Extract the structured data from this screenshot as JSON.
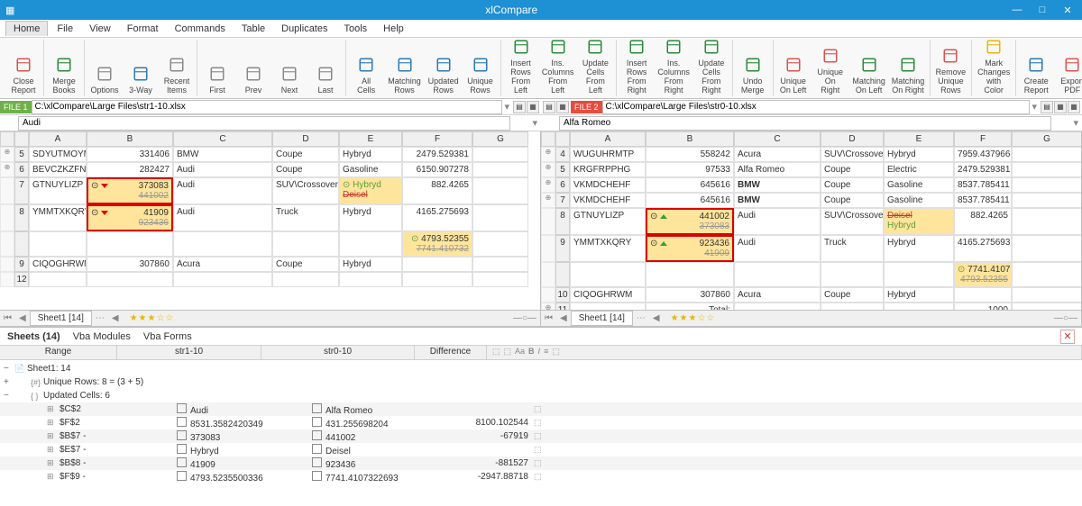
{
  "app": {
    "title": "xlCompare"
  },
  "menu": [
    "Home",
    "File",
    "View",
    "Format",
    "Commands",
    "Table",
    "Duplicates",
    "Tools",
    "Help"
  ],
  "menuActive": 0,
  "ribbon": [
    {
      "label": "Close\nReport",
      "color": "#d9534f"
    },
    {
      "label": "Merge\nBooks",
      "color": "#2a8a3a"
    },
    {
      "label": "Options",
      "color": "#888"
    },
    {
      "label": "3-Way",
      "color": "#2a7ab0"
    },
    {
      "label": "Recent\nItems",
      "color": "#888"
    },
    {
      "label": "First",
      "color": "#888"
    },
    {
      "label": "Prev",
      "color": "#888"
    },
    {
      "label": "Next",
      "color": "#888"
    },
    {
      "label": "Last",
      "color": "#888"
    },
    {
      "label": "All Cells",
      "color": "#2a7ab0"
    },
    {
      "label": "Matching\nRows",
      "color": "#2a7ab0"
    },
    {
      "label": "Updated\nRows",
      "color": "#2a7ab0"
    },
    {
      "label": "Unique\nRows",
      "color": "#2a7ab0"
    },
    {
      "label": "Insert Rows\nFrom Left",
      "color": "#2a8a3a"
    },
    {
      "label": "Ins. Columns\nFrom Left",
      "color": "#2a8a3a"
    },
    {
      "label": "Update Cells\nFrom Left",
      "color": "#2a8a3a"
    },
    {
      "label": "Insert Rows\nFrom Right",
      "color": "#2a8a3a"
    },
    {
      "label": "Ins. Columns\nFrom Right",
      "color": "#2a8a3a"
    },
    {
      "label": "Update Cells\nFrom Right",
      "color": "#2a8a3a"
    },
    {
      "label": "Undo\nMerge",
      "color": "#2a8a3a"
    },
    {
      "label": "Unique\nOn Left",
      "color": "#d9534f"
    },
    {
      "label": "Unique\nOn Right",
      "color": "#d9534f"
    },
    {
      "label": "Matching\nOn Left",
      "color": "#2a8a3a"
    },
    {
      "label": "Matching\nOn Right",
      "color": "#2a8a3a"
    },
    {
      "label": "Remove\nUnique Rows",
      "color": "#d9534f"
    },
    {
      "label": "Mark Changes\nwith Color",
      "color": "#e6b800"
    },
    {
      "label": "Create\nReport",
      "color": "#2a7ab0"
    },
    {
      "label": "Export\nPDF",
      "color": "#d9534f"
    }
  ],
  "files": {
    "left": {
      "tag": "FILE 1",
      "path": "C:\\xlCompare\\Large Files\\str1-10.xlsx",
      "cell": "Audi"
    },
    "right": {
      "tag": "FILE 2",
      "path": "C:\\xlCompare\\Large Files\\str0-10.xlsx",
      "cell": "Alfa Romeo"
    }
  },
  "cols": [
    "A",
    "B",
    "C",
    "D",
    "E",
    "F",
    "G"
  ],
  "leftRows": [
    {
      "n": "5",
      "cls": "green-row",
      "a": "SDYUTMOYM",
      "b": "331406",
      "c": "BMW",
      "d": "Coupe",
      "e": "Hybryd",
      "f": "2479.529381"
    },
    {
      "n": "6",
      "cls": "green-row",
      "a": "BEVCZKZFN",
      "b": "282427",
      "c": "Audi",
      "d": "Coupe",
      "e": "Gasoline",
      "f": "6150.907278"
    },
    {
      "n": "7",
      "a": "GTNUYLIZP",
      "b": "373083",
      "b2": "441002",
      "c": "Audi",
      "d": "SUV\\Crossover",
      "e": "Hybryd",
      "e2": "Deisel",
      "f": "882.4265",
      "box": true,
      "ecell": true
    },
    {
      "n": "8",
      "a": "YMMTXKQRY",
      "b": "41909",
      "b2": "923436",
      "c": "Audi",
      "d": "Truck",
      "e": "Hybryd",
      "f": "4165.275693",
      "box": true
    },
    {
      "n": "",
      "f": "4793.52355",
      "f2": "7741.410732",
      "fonly": true
    },
    {
      "n": "9",
      "a": "CIQOGHRWM",
      "b": "307860",
      "c": "Acura",
      "d": "Coupe",
      "e": "Hybryd",
      "f": ""
    },
    {
      "n": "12"
    }
  ],
  "rightRows": [
    {
      "n": "4",
      "cls": "pink-row",
      "a": "WUGUHRMTP",
      "b": "558242",
      "c": "Acura",
      "d": "SUV\\Crossover",
      "e": "Hybryd",
      "f": "7959.437966"
    },
    {
      "n": "5",
      "cls": "pink-row",
      "a": "KRGFRPPHG",
      "b": "97533",
      "c": "Alfa Romeo",
      "d": "Coupe",
      "e": "Electric",
      "f": "2479.529381"
    },
    {
      "n": "6",
      "cls": "pink-row",
      "a": "VKMDCHEHF",
      "b": "645616",
      "c": "BMW",
      "cbold": true,
      "d": "Coupe",
      "e": "Gasoline",
      "f": "8537.785411"
    },
    {
      "n": "7",
      "cls": "pink-row",
      "a": "VKMDCHEHF",
      "b": "645616",
      "c": "BMW",
      "cbold": true,
      "d": "Coupe",
      "e": "Gasoline",
      "f": "8537.785411"
    },
    {
      "n": "8",
      "a": "GTNUYLIZP",
      "b": "441002",
      "b2": "373083",
      "c": "Audi",
      "d": "SUV\\Crossover",
      "e": "Deisel",
      "e2": "Hybryd",
      "f": "882.4265",
      "box": true,
      "ecell": true
    },
    {
      "n": "9",
      "a": "YMMTXKQRY",
      "b": "923436",
      "b2": "41909",
      "c": "Audi",
      "d": "Truck",
      "e": "Hybryd",
      "f": "4165.275693",
      "box": true
    },
    {
      "n": "",
      "f": "7741.410732",
      "f2": "4793.52355",
      "fonly": true
    },
    {
      "n": "10",
      "a": "CIQOGHRWM",
      "b": "307860",
      "c": "Acura",
      "d": "Coupe",
      "e": "Hybryd",
      "f": ""
    },
    {
      "n": "11",
      "cls": "pink-row",
      "a": "",
      "b": "Total:",
      "f": "1000"
    }
  ],
  "sheetTab": "Sheet1 [14]",
  "bottom": {
    "tabs": [
      "Sheets (14)",
      "Vba Modules",
      "Vba Forms"
    ],
    "header": {
      "range": "Range",
      "c1": "str1-10",
      "c2": "str0-10",
      "diff": "Difference"
    },
    "rows": [
      {
        "lvl": 0,
        "toggle": "−",
        "icon": "📄",
        "text": "Sheet1: 14"
      },
      {
        "lvl": 1,
        "toggle": "+",
        "icon": "{#}",
        "text": "Unique Rows: 8 = (3 + 5)"
      },
      {
        "lvl": 1,
        "toggle": "−",
        "icon": "{ }",
        "text": "Updated Cells: 6"
      },
      {
        "lvl": 2,
        "ref": "$C$2",
        "v1": "Audi",
        "v2": "Alfa Romeo",
        "diff": "",
        "alt": true
      },
      {
        "lvl": 2,
        "ref": "$F$2",
        "v1": "8531.3582420349",
        "v2": "431.255698204",
        "diff": "8100.102544"
      },
      {
        "lvl": 2,
        "ref": "$B$7 -",
        "v1": "373083",
        "v2": "441002",
        "diff": "-67919",
        "alt": true
      },
      {
        "lvl": 2,
        "ref": "$E$7 -",
        "v1": "Hybryd",
        "v2": "Deisel",
        "diff": ""
      },
      {
        "lvl": 2,
        "ref": "$B$8 -",
        "v1": "41909",
        "v2": "923436",
        "diff": "-881527",
        "alt": true
      },
      {
        "lvl": 2,
        "ref": "$F$9 -",
        "v1": "4793.5235500336",
        "v2": "7741.4107322693",
        "diff": "-2947.88718"
      }
    ]
  },
  "colors": {
    "titlebar": "#1e90d4",
    "green": "#c8e6b0",
    "pink": "#f5b8b8",
    "yellow": "#ffe59c",
    "redbox": "#d00"
  }
}
